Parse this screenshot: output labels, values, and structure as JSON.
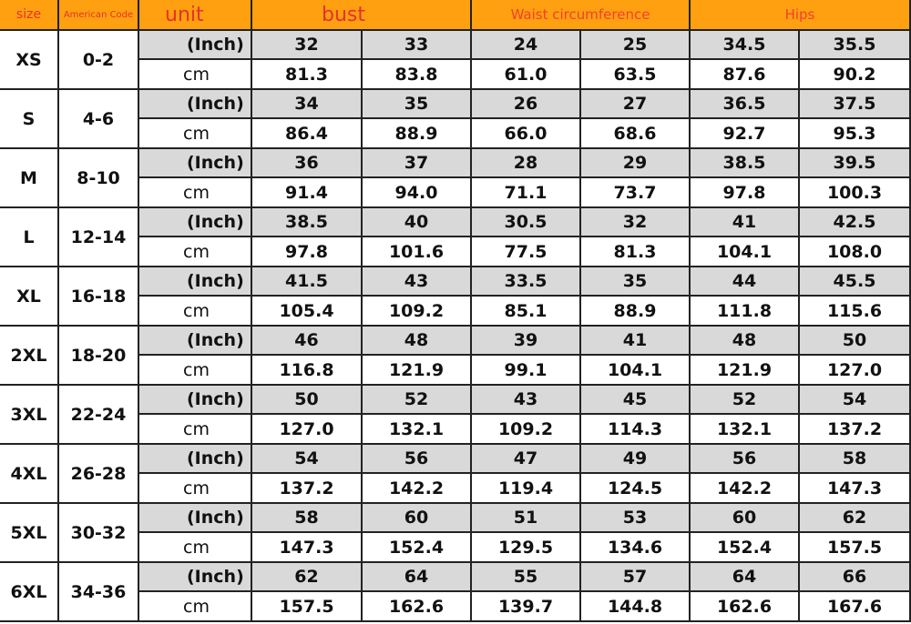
{
  "header": {
    "size": "size",
    "code": "American Code",
    "unit": "unit",
    "bust": "bust",
    "waist": "Waist circumference",
    "hips": "Hips"
  },
  "rows": [
    {
      "size": "XS",
      "code": "0-2",
      "inch_unit": "(Inch)",
      "inch": [
        "32",
        "33",
        "24",
        "25",
        "34.5",
        "35.5"
      ],
      "cm_unit": "cm",
      "cm": [
        "81.3",
        "83.8",
        "61.0",
        "63.5",
        "87.6",
        "90.2"
      ]
    },
    {
      "size": "S",
      "code": "4-6",
      "inch_unit": "(Inch)",
      "inch": [
        "34",
        "35",
        "26",
        "27",
        "36.5",
        "37.5"
      ],
      "cm_unit": "cm",
      "cm": [
        "86.4",
        "88.9",
        "66.0",
        "68.6",
        "92.7",
        "95.3"
      ]
    },
    {
      "size": "M",
      "code": "8-10",
      "inch_unit": "(Inch)",
      "inch": [
        "36",
        "37",
        "28",
        "29",
        "38.5",
        "39.5"
      ],
      "cm_unit": "cm",
      "cm": [
        "91.4",
        "94.0",
        "71.1",
        "73.7",
        "97.8",
        "100.3"
      ]
    },
    {
      "size": "L",
      "code": "12-14",
      "inch_unit": "(Inch)",
      "inch": [
        "38.5",
        "40",
        "30.5",
        "32",
        "41",
        "42.5"
      ],
      "cm_unit": "cm",
      "cm": [
        "97.8",
        "101.6",
        "77.5",
        "81.3",
        "104.1",
        "108.0"
      ]
    },
    {
      "size": "XL",
      "code": "16-18",
      "inch_unit": "(Inch)",
      "inch": [
        "41.5",
        "43",
        "33.5",
        "35",
        "44",
        "45.5"
      ],
      "cm_unit": "cm",
      "cm": [
        "105.4",
        "109.2",
        "85.1",
        "88.9",
        "111.8",
        "115.6"
      ]
    },
    {
      "size": "2XL",
      "code": "18-20",
      "inch_unit": "(Inch)",
      "inch": [
        "46",
        "48",
        "39",
        "41",
        "48",
        "50"
      ],
      "cm_unit": "cm",
      "cm": [
        "116.8",
        "121.9",
        "99.1",
        "104.1",
        "121.9",
        "127.0"
      ]
    },
    {
      "size": "3XL",
      "code": "22-24",
      "inch_unit": "(Inch)",
      "inch": [
        "50",
        "52",
        "43",
        "45",
        "52",
        "54"
      ],
      "cm_unit": "cm",
      "cm": [
        "127.0",
        "132.1",
        "109.2",
        "114.3",
        "132.1",
        "137.2"
      ]
    },
    {
      "size": "4XL",
      "code": "26-28",
      "inch_unit": "(Inch)",
      "inch": [
        "54",
        "56",
        "47",
        "49",
        "56",
        "58"
      ],
      "cm_unit": "cm",
      "cm": [
        "137.2",
        "142.2",
        "119.4",
        "124.5",
        "142.2",
        "147.3"
      ]
    },
    {
      "size": "5XL",
      "code": "30-32",
      "inch_unit": "(Inch)",
      "inch": [
        "58",
        "60",
        "51",
        "53",
        "60",
        "62"
      ],
      "cm_unit": "cm",
      "cm": [
        "147.3",
        "152.4",
        "129.5",
        "134.6",
        "152.4",
        "157.5"
      ]
    },
    {
      "size": "6XL",
      "code": "34-36",
      "inch_unit": "(Inch)",
      "inch": [
        "62",
        "64",
        "55",
        "57",
        "64",
        "66"
      ],
      "cm_unit": "cm",
      "cm": [
        "157.5",
        "162.6",
        "139.7",
        "144.8",
        "162.6",
        "167.6"
      ]
    }
  ]
}
